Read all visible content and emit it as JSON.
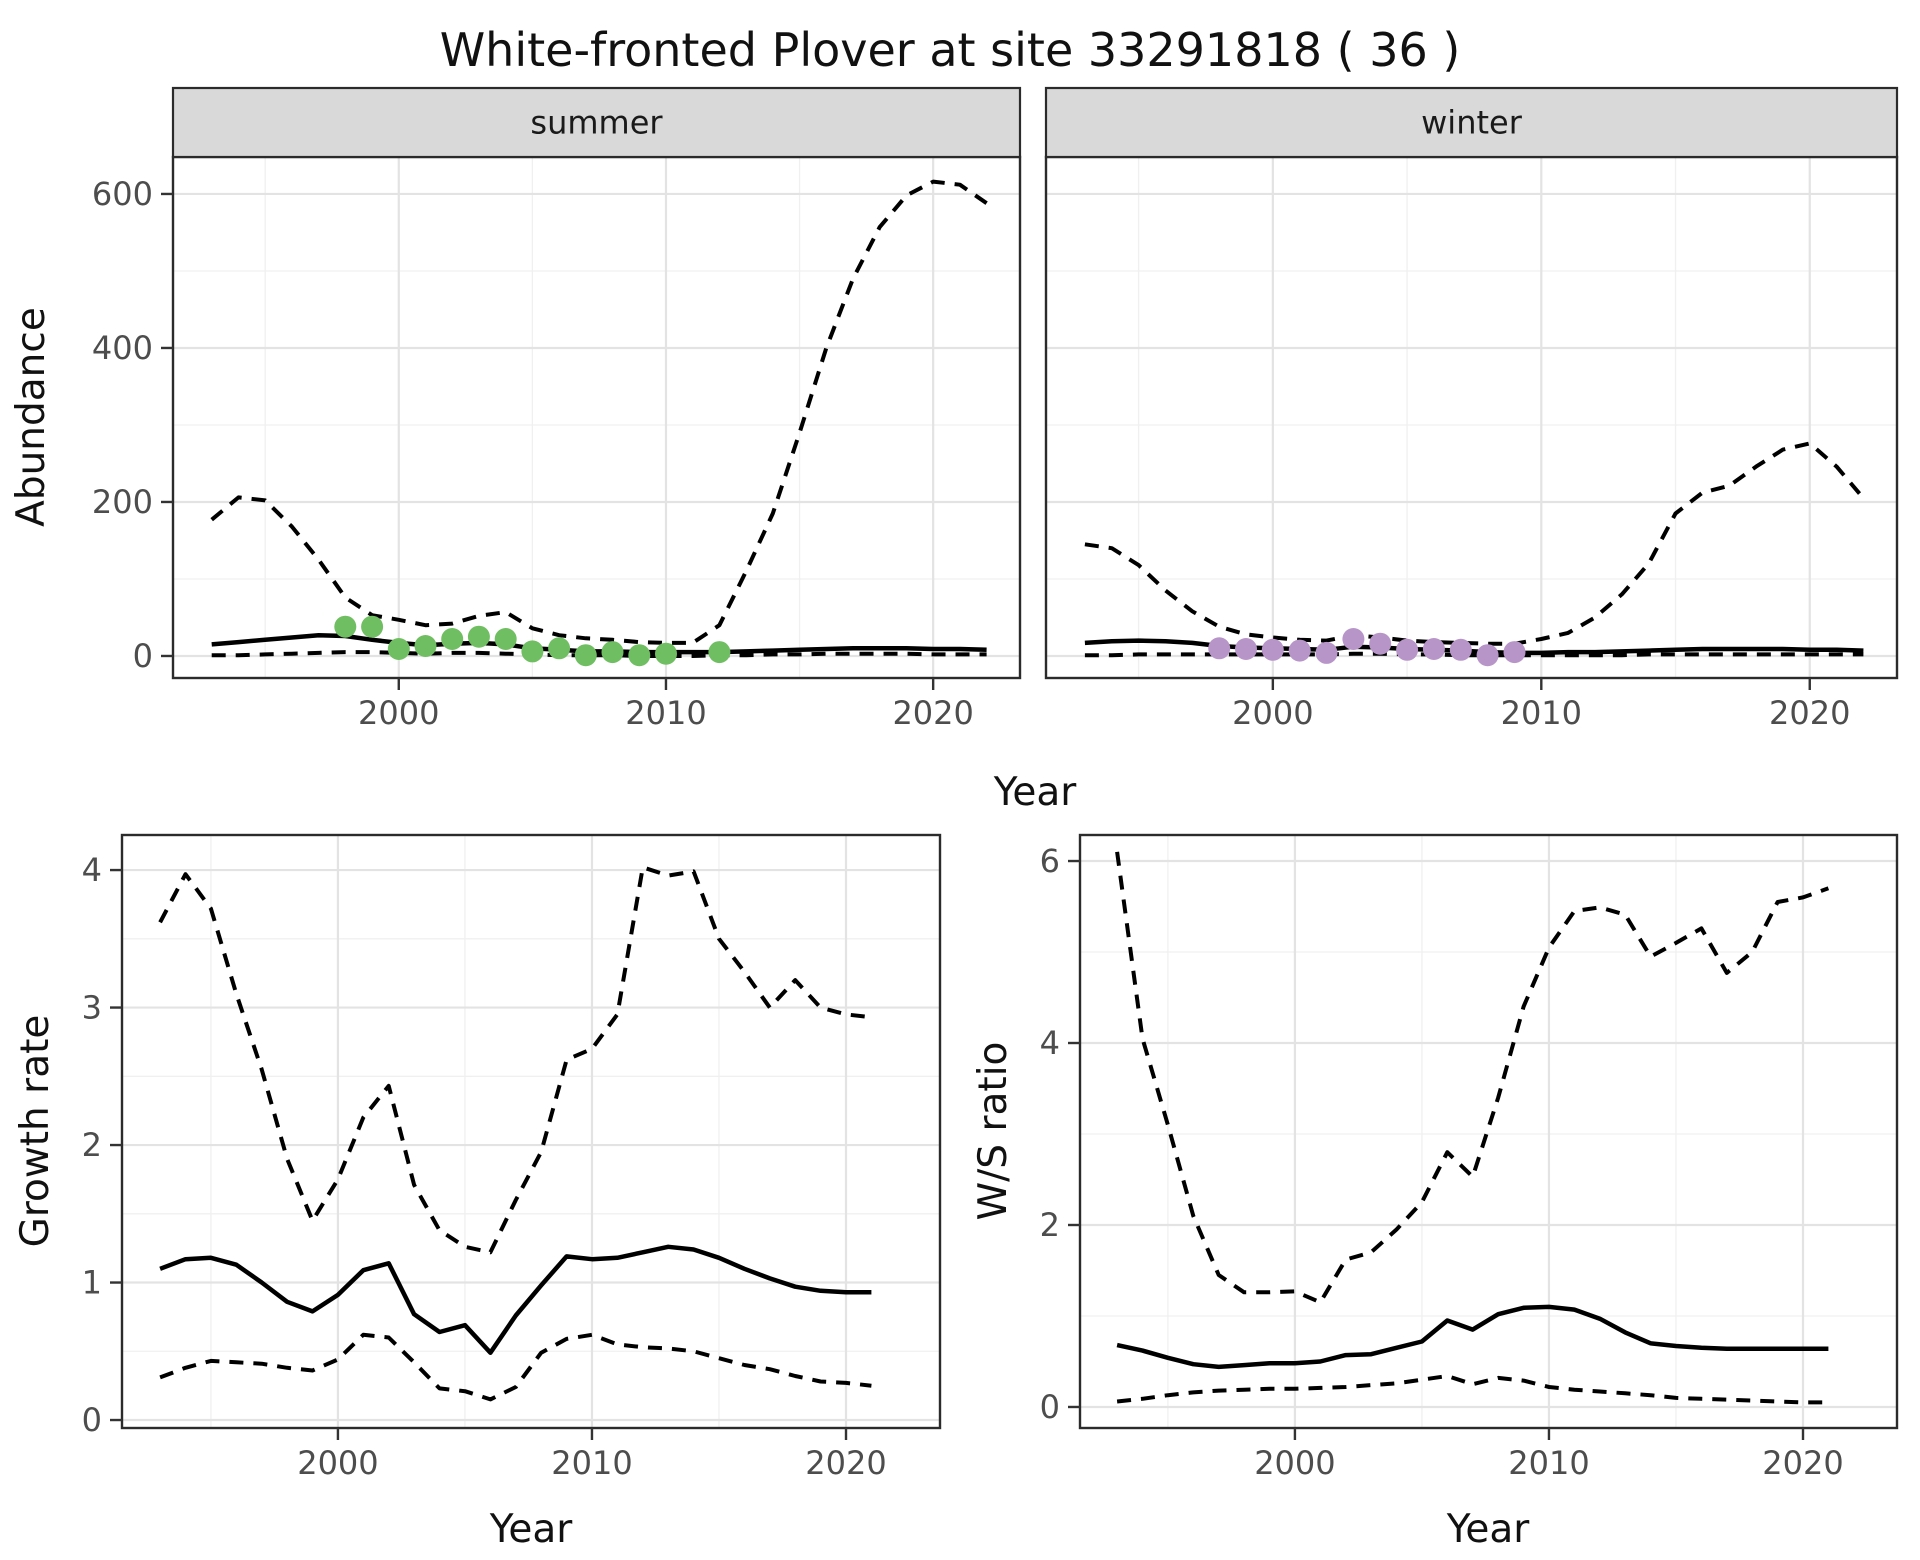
{
  "title": "White-fronted Plover at site 33291818 ( 36 )",
  "colors": {
    "summer_point": "#70BE62",
    "winter_point": "#B895C8",
    "series_line": "#000000",
    "strip_bg": "#D9D9D9",
    "strip_border": "#2B2B2B",
    "panel_border": "#2B2B2B",
    "grid_major": "#E3E3E3",
    "grid_minor": "#F0F0F0",
    "tick_mark": "#333333",
    "tick_label": "#4D4D4D",
    "text": "#111111",
    "background": "#FFFFFF"
  },
  "chart_data": [
    {
      "id": "abundance-summer",
      "type": "line",
      "facet_label": "summer",
      "ylabel": "Abundance",
      "xlabel": "Year",
      "xlim": [
        1991.55,
        2023.25
      ],
      "ylim": [
        -28.6,
        648
      ],
      "x_ticks": [
        2000,
        2010,
        2020
      ],
      "x_minor": [
        1995,
        2005,
        2015
      ],
      "y_ticks": [
        0,
        200,
        400,
        600
      ],
      "y_minor": [
        100,
        300,
        500
      ],
      "grid": true,
      "legend": "none",
      "x": [
        1993,
        1994,
        1995,
        1996,
        1997,
        1998,
        1999,
        2000,
        2001,
        2002,
        2003,
        2004,
        2005,
        2006,
        2007,
        2008,
        2009,
        2010,
        2011,
        2012,
        2013,
        2014,
        2015,
        2016,
        2017,
        2018,
        2019,
        2020,
        2021,
        2022
      ],
      "series": [
        {
          "name": "upper-ci",
          "style": "dashed",
          "values": [
            177,
            206,
            202,
            168,
            125,
            76,
            53,
            47,
            40,
            42,
            52,
            57,
            36,
            27,
            23,
            21,
            18,
            17,
            17,
            40,
            110,
            185,
            290,
            400,
            490,
            557,
            598,
            616,
            612,
            588
          ]
        },
        {
          "name": "mean",
          "style": "solid",
          "values": [
            15,
            18,
            21,
            24,
            27,
            26,
            21,
            17,
            14,
            16,
            17,
            15,
            10,
            8,
            6,
            6,
            5,
            5,
            5,
            5,
            6,
            7,
            8,
            9,
            10,
            10,
            10,
            9,
            9,
            8
          ]
        },
        {
          "name": "lower-ci",
          "style": "dashed",
          "values": [
            1,
            1,
            2,
            3,
            4,
            5,
            5,
            4,
            3,
            4,
            4,
            3,
            2,
            1,
            1,
            1,
            0,
            0,
            0,
            1,
            1,
            2,
            2,
            3,
            3,
            3,
            3,
            2,
            2,
            2
          ]
        }
      ],
      "points": {
        "name": "observed-counts-summer",
        "color_key": "summer_point",
        "x": [
          1998,
          1999,
          2000,
          2001,
          2002,
          2003,
          2004,
          2005,
          2006,
          2007,
          2008,
          2009,
          2010,
          2012
        ],
        "y": [
          38,
          38,
          9,
          13,
          22,
          25,
          22,
          6,
          10,
          1,
          5,
          1,
          3,
          5
        ]
      }
    },
    {
      "id": "abundance-winter",
      "type": "line",
      "facet_label": "winter",
      "ylabel": "",
      "xlabel": "Year",
      "xlim": [
        1991.55,
        2023.25
      ],
      "ylim": [
        -28.6,
        648
      ],
      "x_ticks": [
        2000,
        2010,
        2020
      ],
      "x_minor": [
        1995,
        2005,
        2015
      ],
      "y_ticks": [
        0,
        200,
        400,
        600
      ],
      "y_minor": [
        100,
        300,
        500
      ],
      "grid": true,
      "legend": "none",
      "x": [
        1993,
        1994,
        1995,
        1996,
        1997,
        1998,
        1999,
        2000,
        2001,
        2002,
        2003,
        2004,
        2005,
        2006,
        2007,
        2008,
        2009,
        2010,
        2011,
        2012,
        2013,
        2014,
        2015,
        2016,
        2017,
        2018,
        2019,
        2020,
        2021,
        2022
      ],
      "series": [
        {
          "name": "upper-ci",
          "style": "dashed",
          "values": [
            145,
            140,
            118,
            85,
            58,
            38,
            28,
            24,
            21,
            20,
            27,
            24,
            20,
            18,
            17,
            16,
            16,
            22,
            30,
            50,
            80,
            120,
            185,
            212,
            221,
            246,
            268,
            276,
            246,
            205
          ]
        },
        {
          "name": "mean",
          "style": "solid",
          "values": [
            17,
            19,
            20,
            19,
            17,
            13,
            11,
            10,
            9,
            8,
            12,
            11,
            9,
            8,
            7,
            5,
            4,
            4,
            5,
            5,
            6,
            7,
            8,
            9,
            9,
            9,
            9,
            8,
            8,
            7
          ]
        },
        {
          "name": "lower-ci",
          "style": "dashed",
          "values": [
            1,
            1,
            2,
            2,
            2,
            2,
            2,
            2,
            2,
            2,
            3,
            3,
            2,
            2,
            1,
            1,
            1,
            1,
            1,
            1,
            1,
            2,
            2,
            2,
            2,
            2,
            2,
            2,
            2,
            2
          ]
        }
      ],
      "points": {
        "name": "observed-counts-winter",
        "color_key": "winter_point",
        "x": [
          1998,
          1999,
          2000,
          2001,
          2002,
          2003,
          2004,
          2005,
          2006,
          2007,
          2008,
          2009
        ],
        "y": [
          10,
          9,
          8,
          7,
          4,
          22,
          16,
          8,
          9,
          8,
          1,
          5
        ]
      }
    },
    {
      "id": "growth-rate",
      "type": "line",
      "facet_label": "",
      "ylabel": "Growth rate",
      "xlabel": "Year",
      "xlim": [
        1991.5,
        2023.7
      ],
      "ylim": [
        -0.058,
        4.255
      ],
      "x_ticks": [
        2000,
        2010,
        2020
      ],
      "x_minor": [
        1995,
        2005,
        2015
      ],
      "y_ticks": [
        0,
        1,
        2,
        3,
        4
      ],
      "y_minor": [
        0.5,
        1.5,
        2.5,
        3.5
      ],
      "grid": true,
      "legend": "none",
      "x": [
        1993,
        1994,
        1995,
        1996,
        1997,
        1998,
        1999,
        2000,
        2001,
        2002,
        2003,
        2004,
        2005,
        2006,
        2007,
        2008,
        2009,
        2010,
        2011,
        2012,
        2013,
        2014,
        2015,
        2016,
        2017,
        2018,
        2019,
        2020,
        2021
      ],
      "series": [
        {
          "name": "upper-ci",
          "style": "dashed",
          "values": [
            3.62,
            3.97,
            3.72,
            3.1,
            2.55,
            1.9,
            1.45,
            1.75,
            2.2,
            2.43,
            1.71,
            1.38,
            1.26,
            1.22,
            1.6,
            1.95,
            2.62,
            2.7,
            2.95,
            4.02,
            3.96,
            3.99,
            3.5,
            3.26,
            3.0,
            3.2,
            3.0,
            2.95,
            2.93
          ]
        },
        {
          "name": "mean",
          "style": "solid",
          "values": [
            1.1,
            1.17,
            1.18,
            1.13,
            1.0,
            0.86,
            0.79,
            0.91,
            1.09,
            1.14,
            0.77,
            0.64,
            0.69,
            0.49,
            0.76,
            0.98,
            1.19,
            1.17,
            1.18,
            1.22,
            1.26,
            1.24,
            1.18,
            1.1,
            1.03,
            0.97,
            0.94,
            0.93,
            0.93
          ]
        },
        {
          "name": "lower-ci",
          "style": "dashed",
          "values": [
            0.31,
            0.38,
            0.43,
            0.42,
            0.41,
            0.38,
            0.36,
            0.44,
            0.62,
            0.6,
            0.42,
            0.23,
            0.21,
            0.15,
            0.24,
            0.49,
            0.59,
            0.62,
            0.55,
            0.53,
            0.52,
            0.5,
            0.45,
            0.4,
            0.37,
            0.32,
            0.28,
            0.27,
            0.25
          ]
        }
      ],
      "points": null
    },
    {
      "id": "ws-ratio",
      "type": "line",
      "facet_label": "",
      "ylabel": "W/S ratio",
      "xlabel": "Year",
      "xlim": [
        1991.54,
        2023.7
      ],
      "ylim": [
        -0.231,
        6.286
      ],
      "x_ticks": [
        2000,
        2010,
        2020
      ],
      "x_minor": [
        1995,
        2005,
        2015
      ],
      "y_ticks": [
        0,
        2,
        4,
        6
      ],
      "y_minor": [
        1,
        3,
        5
      ],
      "grid": true,
      "legend": "none",
      "x": [
        1993,
        1994,
        1995,
        1996,
        1997,
        1998,
        1999,
        2000,
        2001,
        2002,
        2003,
        2004,
        2005,
        2006,
        2007,
        2008,
        2009,
        2010,
        2011,
        2012,
        2013,
        2014,
        2015,
        2016,
        2017,
        2018,
        2019,
        2020,
        2021
      ],
      "series": [
        {
          "name": "upper-ci",
          "style": "dashed",
          "values": [
            6.1,
            4.05,
            3.1,
            2.1,
            1.45,
            1.26,
            1.26,
            1.27,
            1.15,
            1.62,
            1.7,
            1.95,
            2.25,
            2.8,
            2.53,
            3.4,
            4.4,
            5.05,
            5.45,
            5.49,
            5.41,
            4.95,
            5.1,
            5.26,
            4.77,
            5.0,
            5.55,
            5.6,
            5.7
          ]
        },
        {
          "name": "mean",
          "style": "solid",
          "values": [
            0.68,
            0.62,
            0.54,
            0.47,
            0.44,
            0.46,
            0.48,
            0.48,
            0.5,
            0.57,
            0.58,
            0.65,
            0.72,
            0.95,
            0.85,
            1.02,
            1.09,
            1.1,
            1.07,
            0.97,
            0.82,
            0.7,
            0.67,
            0.65,
            0.64,
            0.64,
            0.64,
            0.64,
            0.64
          ]
        },
        {
          "name": "lower-ci",
          "style": "dashed",
          "values": [
            0.06,
            0.09,
            0.13,
            0.16,
            0.18,
            0.19,
            0.2,
            0.2,
            0.21,
            0.22,
            0.24,
            0.26,
            0.3,
            0.34,
            0.25,
            0.32,
            0.29,
            0.22,
            0.19,
            0.17,
            0.15,
            0.13,
            0.1,
            0.09,
            0.08,
            0.07,
            0.06,
            0.05,
            0.05
          ]
        }
      ],
      "points": null
    }
  ]
}
